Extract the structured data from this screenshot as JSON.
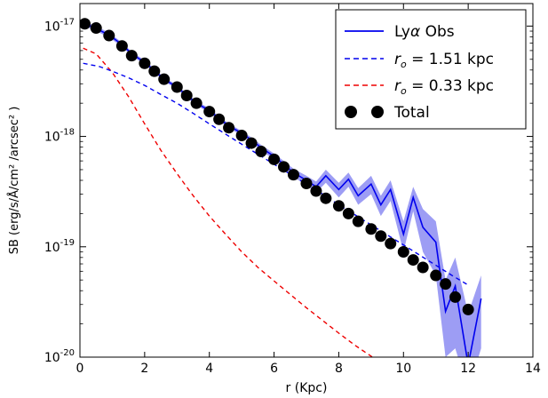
{
  "chart_data": {
    "type": "line",
    "xlabel": "r (Kpc)",
    "ylabel": "SB (erg/s/Å/cm² /arcsec² )",
    "xlim": [
      0,
      14
    ],
    "ylim": [
      1e-20,
      1.6e-17
    ],
    "yscale": "log",
    "xticks": [
      0,
      2,
      4,
      6,
      8,
      10,
      12,
      14
    ],
    "yticks": [
      {
        "value": 1e-17,
        "base": "10",
        "exp": "-17"
      },
      {
        "value": 1e-18,
        "base": "10",
        "exp": "-18"
      },
      {
        "value": 1e-19,
        "base": "10",
        "exp": "-19"
      },
      {
        "value": 1e-20,
        "base": "10",
        "exp": "-20"
      }
    ],
    "legend_position": "top-right",
    "grid": false,
    "series": [
      {
        "name": "Lyα Obs",
        "label_parts": [
          "Ly",
          "α",
          " Obs"
        ],
        "style": "solid",
        "color": "#0000ee",
        "band_color": "#8c8cf2",
        "x": [
          0.15,
          0.5,
          0.9,
          1.3,
          1.6,
          2.0,
          2.3,
          2.6,
          3.0,
          3.3,
          3.6,
          4.0,
          4.3,
          4.6,
          5.0,
          5.3,
          5.6,
          6.0,
          6.3,
          6.6,
          7.0,
          7.3,
          7.6,
          8.0,
          8.3,
          8.6,
          9.0,
          9.3,
          9.6,
          10.0,
          10.3,
          10.6,
          11.0,
          11.3,
          11.6,
          12.0,
          12.4
        ],
        "y": [
          1.05e-17,
          9.5e-18,
          8.3e-18,
          6.8e-18,
          5.6e-18,
          4.7e-18,
          3.95e-18,
          3.3e-18,
          2.8e-18,
          2.35e-18,
          2e-18,
          1.72e-18,
          1.45e-18,
          1.25e-18,
          1.07e-18,
          9.3e-19,
          7.9e-19,
          6.6e-19,
          5.6e-19,
          4.7e-19,
          4e-19,
          3.5e-19,
          4.4e-19,
          3.3e-19,
          4.1e-19,
          2.9e-19,
          3.7e-19,
          2.4e-19,
          3.3e-19,
          1.3e-19,
          2.8e-19,
          1.5e-19,
          1.1e-19,
          2.6e-20,
          4.4e-20,
          8.5e-21,
          3.4e-20
        ],
        "y_low": [
          1e-17,
          9e-18,
          7.9e-18,
          6.5e-18,
          5.35e-18,
          4.5e-18,
          3.78e-18,
          3.16e-18,
          2.68e-18,
          2.25e-18,
          1.91e-18,
          1.64e-18,
          1.38e-18,
          1.19e-18,
          1.02e-18,
          8.8e-19,
          7.4e-19,
          6.2e-19,
          5.2e-19,
          4.3e-19,
          3.6e-19,
          3.1e-19,
          3.8e-19,
          2.8e-19,
          3.5e-19,
          2.4e-19,
          3e-19,
          1.9e-19,
          2.6e-19,
          9e-20,
          2.1e-19,
          9e-20,
          5.5e-20,
          1e-20,
          1.2e-20,
          5e-21,
          1.2e-20
        ],
        "y_high": [
          1.1e-17,
          1e-17,
          8.7e-18,
          7.1e-18,
          5.85e-18,
          4.9e-18,
          4.12e-18,
          3.44e-18,
          2.92e-18,
          2.45e-18,
          2.09e-18,
          1.8e-18,
          1.52e-18,
          1.31e-18,
          1.12e-18,
          9.8e-19,
          8.4e-19,
          7e-19,
          6e-19,
          5.1e-19,
          4.4e-19,
          3.9e-19,
          5e-19,
          3.8e-19,
          4.7e-19,
          3.4e-19,
          4.4e-19,
          2.9e-19,
          4e-19,
          1.7e-19,
          3.5e-19,
          2.2e-19,
          1.7e-19,
          5e-20,
          8e-20,
          2.5e-20,
          5.5e-20
        ]
      },
      {
        "name": "r_o = 1.51 kpc",
        "label_parts": [
          "r",
          "o",
          " = 1.51 kpc"
        ],
        "style": "dashed",
        "color": "#0000ee",
        "x": [
          0.1,
          0.6,
          1.0,
          1.5,
          2.0,
          2.5,
          3.0,
          3.5,
          4.0,
          4.5,
          5.0,
          5.5,
          6.0,
          6.5,
          7.0,
          7.5,
          8.0,
          8.5,
          9.0,
          9.5,
          10.0,
          10.5,
          11.0,
          11.5,
          12.0
        ],
        "y": [
          4.6e-18,
          4.3e-18,
          3.9e-18,
          3.4e-18,
          2.9e-18,
          2.4e-18,
          2e-18,
          1.62e-18,
          1.3e-18,
          1.05e-18,
          8.5e-19,
          6.9e-19,
          5.6e-19,
          4.55e-19,
          3.7e-19,
          3e-19,
          2.4e-19,
          1.95e-19,
          1.58e-19,
          1.28e-19,
          1.04e-19,
          8.4e-20,
          6.8e-20,
          5.5e-20,
          4.5e-20
        ]
      },
      {
        "name": "r_o = 0.33 kpc",
        "label_parts": [
          "r",
          "o",
          " = 0.33 kpc"
        ],
        "style": "dashed",
        "color": "#ee0000",
        "x": [
          0.1,
          0.5,
          1.0,
          1.5,
          2.0,
          2.5,
          3.0,
          3.5,
          4.0,
          4.5,
          5.0,
          5.5,
          6.0,
          6.5,
          7.0,
          7.5,
          8.0,
          8.5,
          9.0,
          9.2
        ],
        "y": [
          6.3e-18,
          5.6e-18,
          3.8e-18,
          2.3e-18,
          1.3e-18,
          7.5e-19,
          4.6e-19,
          2.9e-19,
          1.9e-19,
          1.3e-19,
          9e-20,
          6.5e-20,
          4.9e-20,
          3.7e-20,
          2.8e-20,
          2.15e-20,
          1.65e-20,
          1.28e-20,
          1.02e-20,
          9e-21
        ]
      },
      {
        "name": "Total",
        "label_parts": [
          "Total",
          "",
          ""
        ],
        "style": "markers",
        "color": "#000000",
        "x": [
          0.15,
          0.5,
          0.9,
          1.3,
          1.6,
          2.0,
          2.3,
          2.6,
          3.0,
          3.3,
          3.6,
          4.0,
          4.3,
          4.6,
          5.0,
          5.3,
          5.6,
          6.0,
          6.3,
          6.6,
          7.0,
          7.3,
          7.6,
          8.0,
          8.3,
          8.6,
          9.0,
          9.3,
          9.6,
          10.0,
          10.3,
          10.6,
          11.0,
          11.3,
          11.6,
          12.0
        ],
        "y": [
          1.05e-17,
          9.6e-18,
          8.2e-18,
          6.6e-18,
          5.4e-18,
          4.6e-18,
          3.9e-18,
          3.3e-18,
          2.8e-18,
          2.35e-18,
          2e-18,
          1.68e-18,
          1.43e-18,
          1.2e-18,
          1.02e-18,
          8.7e-19,
          7.3e-19,
          6.2e-19,
          5.3e-19,
          4.5e-19,
          3.75e-19,
          3.2e-19,
          2.75e-19,
          2.35e-19,
          2e-19,
          1.7e-19,
          1.45e-19,
          1.25e-19,
          1.07e-19,
          9e-20,
          7.6e-20,
          6.5e-20,
          5.5e-20,
          4.6e-20,
          3.5e-20,
          2.7e-20
        ]
      }
    ]
  }
}
